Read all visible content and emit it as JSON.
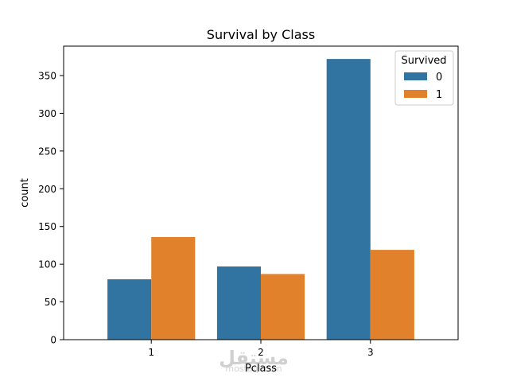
{
  "chart_data": {
    "type": "bar",
    "title": "Survival by Class",
    "xlabel": "Pclass",
    "ylabel": "count",
    "categories": [
      "1",
      "2",
      "3"
    ],
    "series": [
      {
        "name": "0",
        "values": [
          80,
          97,
          372
        ],
        "color": "#3274a1"
      },
      {
        "name": "1",
        "values": [
          136,
          87,
          119
        ],
        "color": "#e1812c"
      }
    ],
    "ylim": [
      0,
      389
    ],
    "yticks": [
      0,
      50,
      100,
      150,
      200,
      250,
      300,
      350
    ],
    "legend": {
      "title": "Survived",
      "placement": "upper right"
    },
    "grid": false
  },
  "watermark": {
    "text": "mostaql.com"
  }
}
